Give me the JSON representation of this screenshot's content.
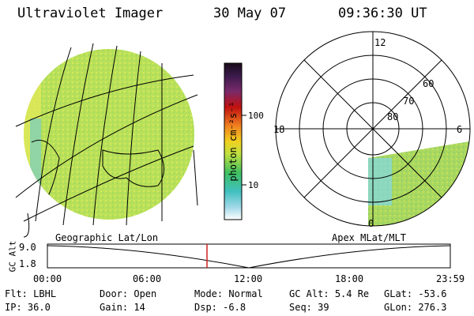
{
  "header": {
    "title": "Ultraviolet Imager",
    "date": "30 May 07",
    "time": "09:36:30 UT"
  },
  "colorbar": {
    "unit_label": "photon cm⁻²s⁻¹",
    "ticks": [
      "100",
      "10"
    ],
    "stops": [
      "#1a0b1a",
      "#3a1a4a",
      "#7a2a6a",
      "#b01010",
      "#e02020",
      "#f08020",
      "#f0c020",
      "#e0e040",
      "#a0e040",
      "#40c060",
      "#40c0c0",
      "#80d0e0",
      "#e0f0f0",
      "#ffffff"
    ]
  },
  "left_panel": {
    "caption": "Geographic Lat/Lon",
    "disk_color": "#b8e05a"
  },
  "right_panel": {
    "caption": "Apex MLat/MLT",
    "mlt_labels": [
      "12",
      "18",
      "6",
      "0"
    ],
    "lat_labels": [
      "60",
      "70",
      "80"
    ]
  },
  "altitude_strip": {
    "axis_label": "GC Alt",
    "y_ticks": [
      "9.0",
      "1.8"
    ],
    "x_ticks": [
      "00:00",
      "06:00",
      "12:00",
      "18:00",
      "23:59"
    ],
    "cursor_color": "#d02020"
  },
  "footer": {
    "row1": [
      {
        "label": "Flt:",
        "value": "LBHL"
      },
      {
        "label": "Door:",
        "value": "Open"
      },
      {
        "label": "Mode:",
        "value": "Normal"
      },
      {
        "label": "GC Alt:",
        "value": "5.4 Re"
      },
      {
        "label": "GLat:",
        "value": "-53.6"
      }
    ],
    "row2": [
      {
        "label": "IP:",
        "value": "36.0"
      },
      {
        "label": "Gain:",
        "value": "14"
      },
      {
        "label": "Dsp:",
        "value": "-6.8"
      },
      {
        "label": "Seq:",
        "value": "39"
      },
      {
        "label": "GLon:",
        "value": "276.3"
      }
    ]
  }
}
